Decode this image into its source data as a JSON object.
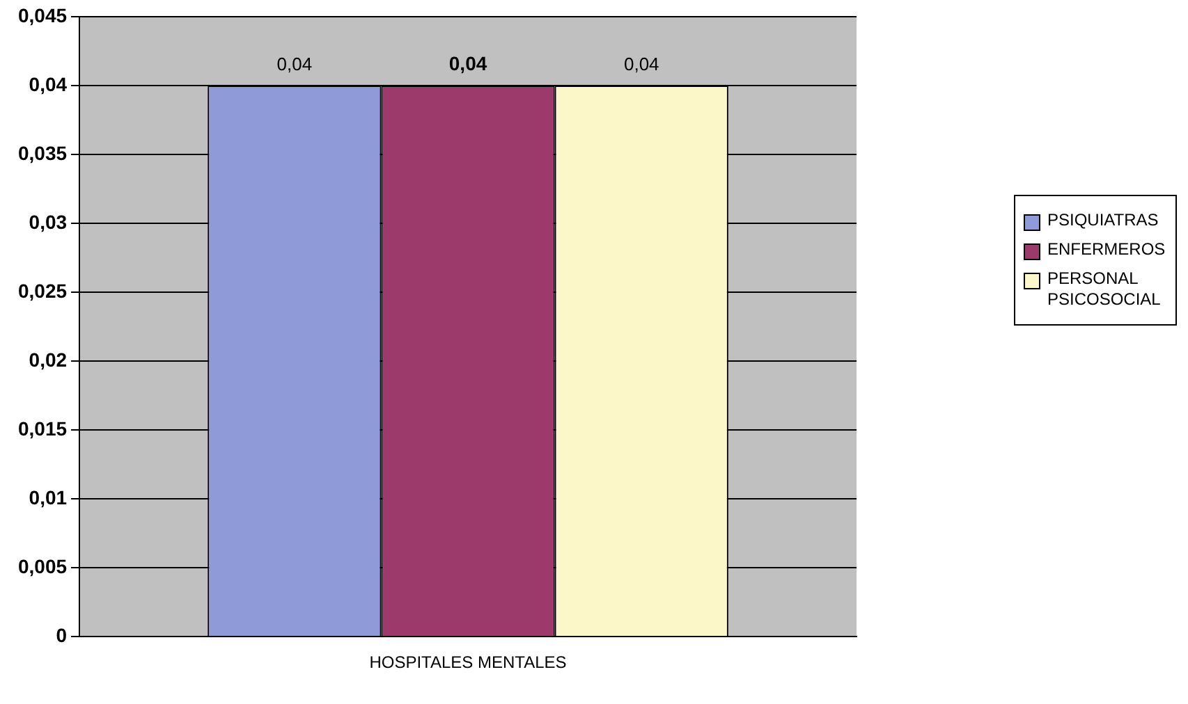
{
  "chart_data": {
    "type": "bar",
    "categories": [
      "HOSPITALES MENTALES"
    ],
    "series": [
      {
        "name": "PSIQUIATRAS",
        "color": "#8e9bd8",
        "values": [
          0.04
        ],
        "value_labels": [
          "0,04"
        ]
      },
      {
        "name": "ENFERMEROS",
        "color": "#9c3a6c",
        "values": [
          0.04
        ],
        "value_labels": [
          "0,04"
        ]
      },
      {
        "name": "PERSONAL PSICOSOCIAL",
        "color": "#fbf7c9",
        "values": [
          0.04
        ],
        "value_labels": [
          "0,04"
        ]
      }
    ],
    "ylim": [
      0,
      0.045
    ],
    "yticks": [
      0,
      {
        "value": 0.005,
        "label": "0,005"
      },
      {
        "value": 0.01,
        "label": "0,01"
      },
      {
        "value": 0.015,
        "label": "0,015"
      },
      {
        "value": 0.02,
        "label": "0,02"
      },
      {
        "value": 0.025,
        "label": "0,025"
      },
      {
        "value": 0.03,
        "label": "0,03"
      },
      {
        "value": 0.035,
        "label": "0,035"
      },
      {
        "value": 0.04,
        "label": "0,04"
      },
      {
        "value": 0.045,
        "label": "0,045"
      }
    ],
    "grid": "y",
    "legend": "right"
  }
}
